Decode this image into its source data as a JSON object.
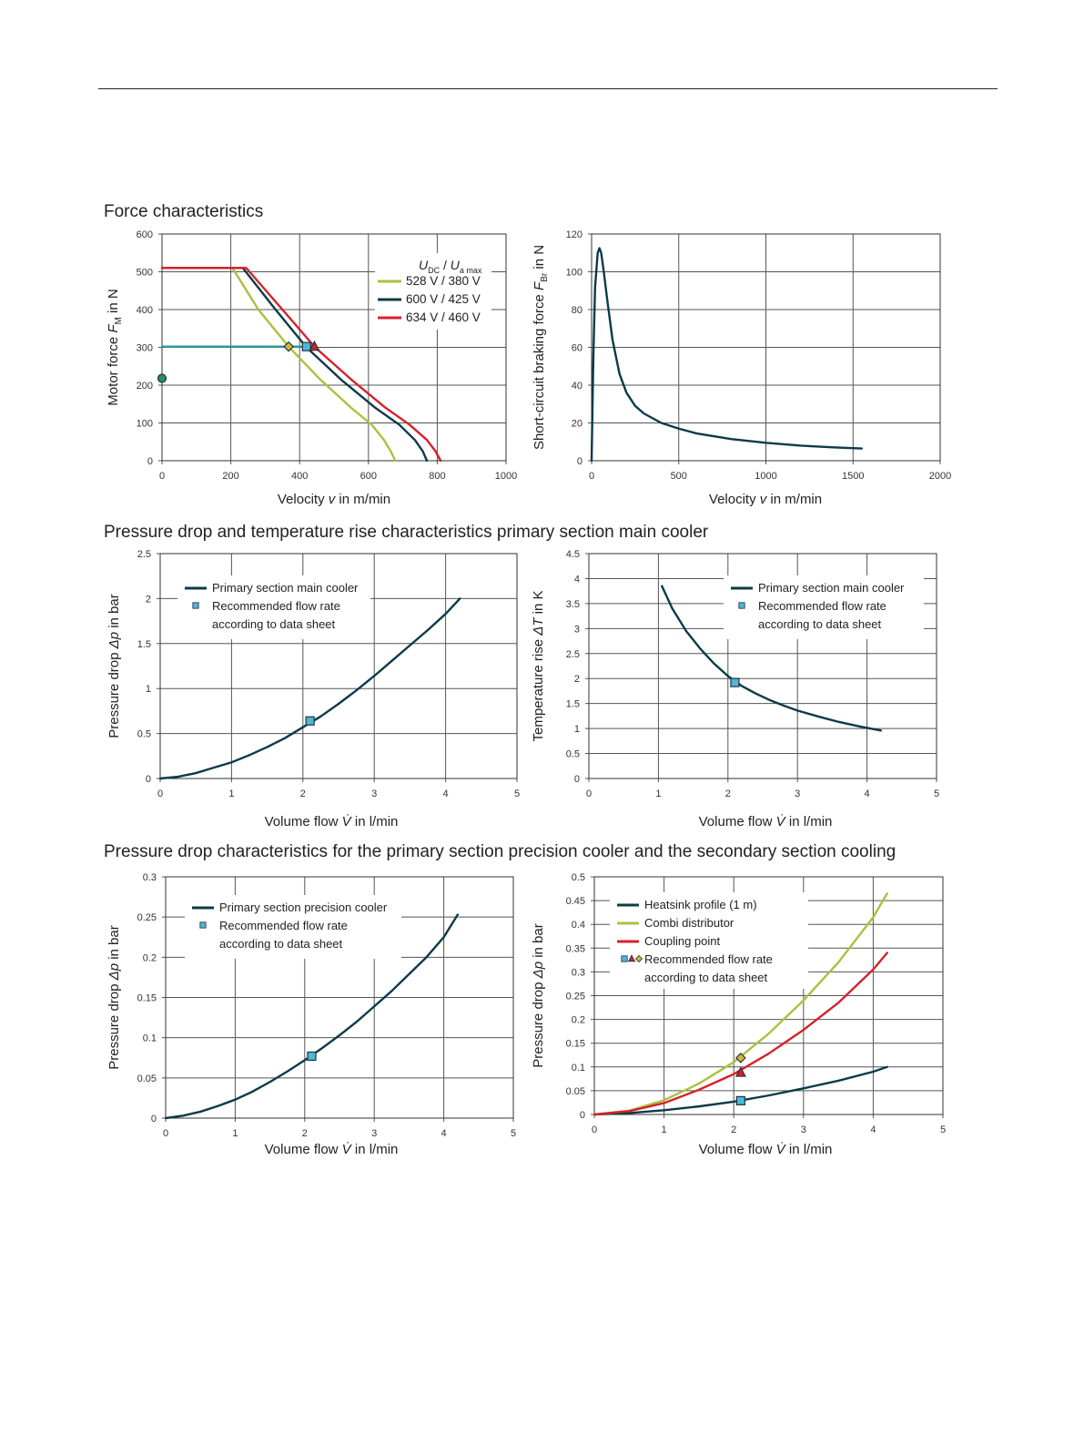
{
  "sections": {
    "force": "Force characteristics",
    "pressure_main": "Pressure drop and temperature rise characteristics primary section main cooler",
    "pressure_secondary": "Pressure drop characteristics for the primary section precision cooler and the secondary section cooling"
  },
  "colors": {
    "dark": "#0d3a4a",
    "green": "#a9c23f",
    "red": "#d4222b",
    "teal": "#2a9a9a",
    "marker_blue": "#4fb6d6",
    "marker_green": "#2e8b57",
    "grid": "#555555"
  },
  "chart_data": [
    {
      "id": "motor-force",
      "type": "line",
      "title": "",
      "xlabel": "Velocity v in m/min",
      "ylabel": "Motor force F_M in N",
      "xlim": [
        0,
        1000
      ],
      "ylim": [
        0,
        600
      ],
      "xticks": [
        0,
        200,
        400,
        600,
        800,
        1000
      ],
      "yticks": [
        0,
        100,
        200,
        300,
        400,
        500,
        600
      ],
      "grid": true,
      "legend_title": "U_DC / U_a max",
      "legend_position": "top-right",
      "series": [
        {
          "name": "528 V / 380 V",
          "color": "#a9c23f",
          "x": [
            0,
            205,
            280,
            370,
            460,
            550,
            610,
            645,
            665,
            678
          ],
          "y": [
            510,
            510,
            400,
            300,
            215,
            140,
            95,
            55,
            25,
            0
          ]
        },
        {
          "name": "600 V / 425 V",
          "color": "#0d3a4a",
          "x": [
            0,
            235,
            330,
            420,
            520,
            620,
            690,
            735,
            758,
            770
          ],
          "y": [
            510,
            510,
            400,
            300,
            215,
            140,
            95,
            55,
            25,
            0
          ]
        },
        {
          "name": "634 V / 460 V",
          "color": "#d4222b",
          "x": [
            0,
            245,
            350,
            445,
            550,
            650,
            720,
            770,
            795,
            810
          ],
          "y": [
            510,
            510,
            400,
            300,
            215,
            140,
            95,
            55,
            25,
            0
          ]
        }
      ],
      "reference_line": {
        "color": "#2a9a9a",
        "x": [
          0,
          445
        ],
        "y": [
          302,
          302
        ]
      },
      "markers": [
        {
          "shape": "diamond",
          "color": "#d9b43a",
          "x": 368,
          "y": 302
        },
        {
          "shape": "square",
          "color": "#4fb6d6",
          "x": 420,
          "y": 302
        },
        {
          "shape": "triangle",
          "color": "#d4222b",
          "x": 443,
          "y": 302
        },
        {
          "shape": "circle",
          "color": "#2e8b57",
          "x": 0,
          "y": 218
        }
      ]
    },
    {
      "id": "braking-force",
      "type": "line",
      "title": "",
      "xlabel": "Velocity v in m/min",
      "ylabel": "Short-circuit braking force F_Br in N",
      "xlim": [
        0,
        2000
      ],
      "ylim": [
        0,
        120
      ],
      "xticks": [
        0,
        500,
        1000,
        1500,
        2000
      ],
      "yticks": [
        0,
        20,
        40,
        60,
        80,
        100,
        120
      ],
      "grid": true,
      "series": [
        {
          "color": "#0d3a4a",
          "x": [
            0,
            10,
            20,
            35,
            45,
            55,
            70,
            90,
            120,
            160,
            200,
            250,
            300,
            400,
            500,
            600,
            700,
            800,
            1000,
            1200,
            1400,
            1550
          ],
          "y": [
            0,
            55,
            92,
            110,
            112.5,
            110,
            100,
            85,
            64,
            46,
            36,
            29,
            25,
            20,
            17,
            14.5,
            13,
            11.5,
            9.5,
            8,
            7,
            6.5
          ]
        }
      ]
    },
    {
      "id": "main-cooler-pressure",
      "type": "line",
      "title": "",
      "xlabel": "Volume flow V̇ in l/min",
      "ylabel": "Pressure drop Δp in bar",
      "xlim": [
        0,
        5
      ],
      "ylim": [
        0,
        2.5
      ],
      "xticks": [
        0,
        1,
        2,
        3,
        4,
        5
      ],
      "yticks": [
        0,
        0.5,
        1,
        1.5,
        2,
        2.5
      ],
      "grid": true,
      "legend_position": "top-left",
      "legend": [
        "Primary section main cooler",
        "Recommended flow rate",
        "according to data sheet"
      ],
      "series": [
        {
          "name": "Primary section main cooler",
          "color": "#0d3a4a",
          "x": [
            0,
            0.25,
            0.5,
            0.75,
            1,
            1.25,
            1.5,
            1.75,
            2,
            2.25,
            2.5,
            2.75,
            3,
            3.25,
            3.5,
            3.75,
            4,
            4.2
          ],
          "y": [
            0,
            0.02,
            0.06,
            0.12,
            0.18,
            0.26,
            0.35,
            0.45,
            0.57,
            0.69,
            0.83,
            0.98,
            1.14,
            1.31,
            1.48,
            1.65,
            1.83,
            2.0
          ]
        }
      ],
      "markers": [
        {
          "shape": "square",
          "color": "#4fb6d6",
          "x": 2.1,
          "y": 0.64
        }
      ]
    },
    {
      "id": "main-cooler-temperature",
      "type": "line",
      "title": "",
      "xlabel": "Volume flow V̇ in l/min",
      "ylabel": "Temperature rise ΔT in K",
      "xlim": [
        0,
        5
      ],
      "ylim": [
        0,
        4.5
      ],
      "xticks": [
        0,
        1,
        2,
        3,
        4,
        5
      ],
      "yticks": [
        0,
        0.5,
        1,
        1.5,
        2,
        2.5,
        3,
        3.5,
        4,
        4.5
      ],
      "grid": true,
      "legend_position": "top-right",
      "legend": [
        "Primary section main cooler",
        "Recommended flow rate",
        "according to data sheet"
      ],
      "series": [
        {
          "name": "Primary section main cooler",
          "color": "#0d3a4a",
          "x": [
            1.05,
            1.2,
            1.4,
            1.6,
            1.8,
            2.0,
            2.2,
            2.4,
            2.6,
            2.8,
            3.0,
            3.3,
            3.6,
            3.9,
            4.2
          ],
          "y": [
            3.85,
            3.4,
            2.95,
            2.6,
            2.3,
            2.05,
            1.85,
            1.7,
            1.57,
            1.46,
            1.36,
            1.24,
            1.13,
            1.04,
            0.96
          ]
        }
      ],
      "markers": [
        {
          "shape": "square",
          "color": "#4fb6d6",
          "x": 2.1,
          "y": 1.92
        }
      ]
    },
    {
      "id": "precision-cooler-pressure",
      "type": "line",
      "title": "",
      "xlabel": "Volume flow V̇ in l/min",
      "ylabel": "Pressure drop Δp in bar",
      "xlim": [
        0,
        5
      ],
      "ylim": [
        0,
        0.3
      ],
      "xticks": [
        0,
        1,
        2,
        3,
        4,
        5
      ],
      "yticks": [
        0,
        0.05,
        0.1,
        0.15,
        0.2,
        0.25,
        0.3
      ],
      "grid": true,
      "legend_position": "top-left",
      "legend": [
        "Primary section precision cooler",
        "Recommended flow rate",
        "according to data sheet"
      ],
      "series": [
        {
          "name": "Primary section precision cooler",
          "color": "#0d3a4a",
          "x": [
            0,
            0.25,
            0.5,
            0.75,
            1,
            1.25,
            1.5,
            1.75,
            2,
            2.25,
            2.5,
            2.75,
            3,
            3.25,
            3.5,
            3.75,
            4,
            4.2
          ],
          "y": [
            0,
            0.003,
            0.008,
            0.015,
            0.023,
            0.033,
            0.045,
            0.058,
            0.072,
            0.087,
            0.103,
            0.12,
            0.139,
            0.158,
            0.179,
            0.2,
            0.225,
            0.253
          ]
        }
      ],
      "markers": [
        {
          "shape": "square",
          "color": "#4fb6d6",
          "x": 2.1,
          "y": 0.077
        }
      ]
    },
    {
      "id": "secondary-cooling-pressure",
      "type": "line",
      "title": "",
      "xlabel": "Volume flow V̇ in l/min",
      "ylabel": "Pressure drop Δp in bar",
      "xlim": [
        0,
        5
      ],
      "ylim": [
        0,
        0.5
      ],
      "xticks": [
        0,
        1,
        2,
        3,
        4,
        5
      ],
      "yticks": [
        0,
        0.05,
        0.1,
        0.15,
        0.2,
        0.25,
        0.3,
        0.35,
        0.4,
        0.45,
        0.5
      ],
      "grid": true,
      "legend_position": "top-left",
      "legend": [
        "Heatsink profile (1 m)",
        "Combi distributor",
        "Coupling point",
        "Recommended flow rate",
        "according to data sheet"
      ],
      "series": [
        {
          "name": "Heatsink profile (1 m)",
          "color": "#0d3a4a",
          "x": [
            0,
            0.5,
            1,
            1.5,
            2,
            2.5,
            3,
            3.5,
            4,
            4.2
          ],
          "y": [
            0,
            0.003,
            0.009,
            0.017,
            0.027,
            0.04,
            0.055,
            0.071,
            0.09,
            0.1
          ]
        },
        {
          "name": "Combi distributor",
          "color": "#a9c23f",
          "x": [
            0,
            0.5,
            1,
            1.5,
            2,
            2.5,
            3,
            3.5,
            4,
            4.2
          ],
          "y": [
            0,
            0.008,
            0.03,
            0.065,
            0.11,
            0.17,
            0.24,
            0.32,
            0.415,
            0.465
          ]
        },
        {
          "name": "Coupling point",
          "color": "#d4222b",
          "x": [
            0,
            0.5,
            1,
            1.5,
            2,
            2.5,
            3,
            3.5,
            4,
            4.2
          ],
          "y": [
            0,
            0.007,
            0.024,
            0.052,
            0.085,
            0.128,
            0.178,
            0.235,
            0.305,
            0.34
          ]
        }
      ],
      "markers": [
        {
          "shape": "diamond",
          "color": "#d9b43a",
          "x": 2.1,
          "y": 0.119
        },
        {
          "shape": "triangle",
          "color": "#d4222b",
          "x": 2.1,
          "y": 0.088
        },
        {
          "shape": "square",
          "color": "#4fb6d6",
          "x": 2.1,
          "y": 0.029
        }
      ]
    }
  ]
}
